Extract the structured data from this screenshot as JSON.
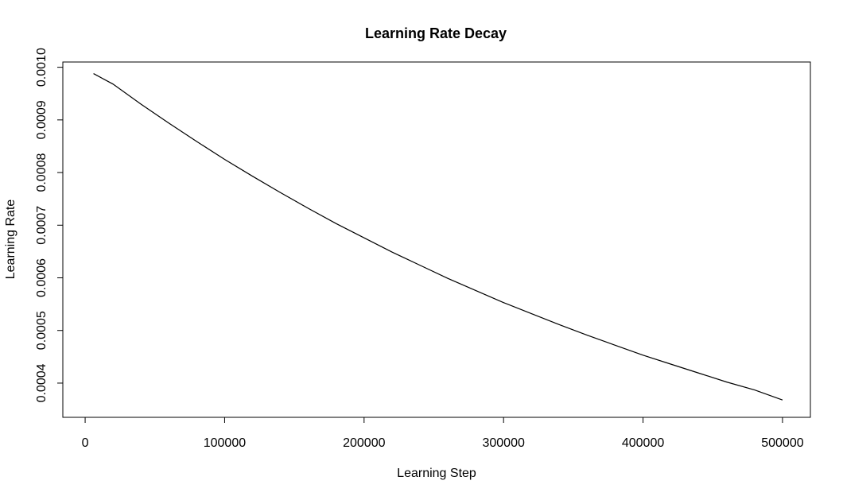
{
  "chart_data": {
    "type": "line",
    "title": "Learning Rate Decay",
    "xlabel": "Learning Step",
    "ylabel": "Learning Rate",
    "xlim": [
      -16000,
      520000
    ],
    "ylim": [
      0.000335,
      0.00101
    ],
    "x_ticks": [
      0,
      100000,
      200000,
      300000,
      400000,
      500000
    ],
    "x_tick_labels": [
      "0",
      "100000",
      "200000",
      "300000",
      "400000",
      "500000"
    ],
    "y_ticks": [
      0.0004,
      0.0005,
      0.0006,
      0.0007,
      0.0008,
      0.0009,
      0.001
    ],
    "y_tick_labels": [
      "0.0004",
      "0.0005",
      "0.0006",
      "0.0007",
      "0.0008",
      "0.0009",
      "0.0010"
    ],
    "grid": false,
    "legend": "none",
    "line_color": "#000000",
    "series": [
      {
        "x": [
          6000,
          20000,
          40000,
          60000,
          80000,
          100000,
          120000,
          140000,
          160000,
          180000,
          200000,
          220000,
          240000,
          260000,
          280000,
          300000,
          320000,
          340000,
          360000,
          380000,
          400000,
          420000,
          440000,
          460000,
          480000,
          500000
        ],
        "y": [
          0.000988,
          0.000968,
          0.00093,
          0.000894,
          0.000859,
          0.000825,
          0.000793,
          0.000762,
          0.000732,
          0.000703,
          0.000676,
          0.000649,
          0.000624,
          0.000599,
          0.000576,
          0.000553,
          0.000532,
          0.000511,
          0.000491,
          0.000472,
          0.000453,
          0.000436,
          0.000419,
          0.000402,
          0.000387,
          0.000368
        ]
      }
    ]
  }
}
